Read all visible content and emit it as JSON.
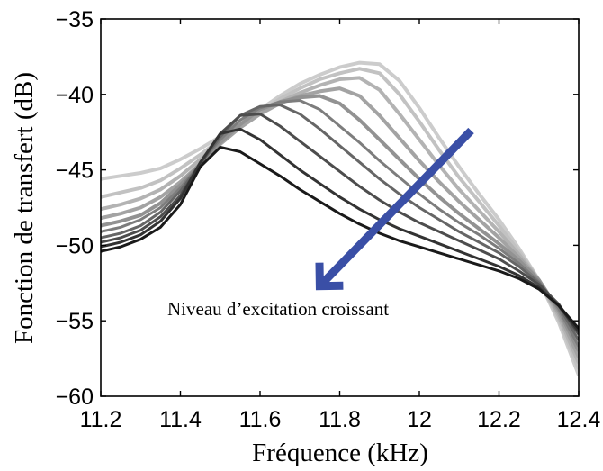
{
  "chart_data": {
    "type": "line",
    "title": "",
    "xlabel": "Fréquence (kHz)",
    "ylabel": "Fonction de transfert (dB)",
    "xlim": [
      11.2,
      12.4
    ],
    "ylim": [
      -60,
      -35
    ],
    "xticks": [
      11.2,
      11.4,
      11.6,
      11.8,
      12,
      12.2,
      12.4
    ],
    "xtick_labels": [
      "11.2",
      "11.4",
      "11.6",
      "11.8",
      "12",
      "12.2",
      "12.4"
    ],
    "yticks": [
      -35,
      -40,
      -45,
      -50,
      -55,
      -60
    ],
    "ytick_labels": [
      "−35",
      "−40",
      "−45",
      "−50",
      "−55",
      "−60"
    ],
    "grid": false,
    "legend": "none",
    "annotation": {
      "text": "Niveau d’excitation croissant",
      "arrow_from": [
        12.13,
        -42.4
      ],
      "arrow_to": [
        11.75,
        -52.7
      ],
      "arrow_color": "#3a4fa6"
    },
    "series_colors": [
      "#1a1a1a",
      "#333333",
      "#4d4d4d",
      "#666666",
      "#7d7d7d",
      "#929292",
      "#a3a3a3",
      "#b3b3b3",
      "#c2c2c2",
      "#cccccc"
    ],
    "series": [
      {
        "peak_x": 11.5,
        "values": [
          [
            11.2,
            -50.4
          ],
          [
            11.25,
            -50.1
          ],
          [
            11.3,
            -49.6
          ],
          [
            11.35,
            -48.8
          ],
          [
            11.4,
            -47.3
          ],
          [
            11.45,
            -44.8
          ],
          [
            11.5,
            -43.5
          ],
          [
            11.55,
            -43.8
          ],
          [
            11.6,
            -44.6
          ],
          [
            11.65,
            -45.4
          ],
          [
            11.7,
            -46.3
          ],
          [
            11.75,
            -47.1
          ],
          [
            11.8,
            -47.9
          ],
          [
            11.85,
            -48.6
          ],
          [
            11.9,
            -49.2
          ],
          [
            11.95,
            -49.7
          ],
          [
            12.0,
            -50.1
          ],
          [
            12.05,
            -50.5
          ],
          [
            12.1,
            -50.9
          ],
          [
            12.15,
            -51.3
          ],
          [
            12.2,
            -51.7
          ],
          [
            12.25,
            -52.2
          ],
          [
            12.3,
            -52.9
          ],
          [
            12.35,
            -54.0
          ],
          [
            12.4,
            -55.5
          ]
        ]
      },
      {
        "peak_x": 11.55,
        "values": [
          [
            11.2,
            -50.1
          ],
          [
            11.25,
            -49.8
          ],
          [
            11.3,
            -49.3
          ],
          [
            11.35,
            -48.4
          ],
          [
            11.4,
            -46.9
          ],
          [
            11.45,
            -44.5
          ],
          [
            11.5,
            -42.6
          ],
          [
            11.55,
            -42.3
          ],
          [
            11.6,
            -43.0
          ],
          [
            11.65,
            -44.0
          ],
          [
            11.7,
            -45.0
          ],
          [
            11.75,
            -45.9
          ],
          [
            11.8,
            -46.8
          ],
          [
            11.85,
            -47.6
          ],
          [
            11.9,
            -48.3
          ],
          [
            11.95,
            -48.9
          ],
          [
            12.0,
            -49.4
          ],
          [
            12.05,
            -49.9
          ],
          [
            12.1,
            -50.4
          ],
          [
            12.15,
            -50.9
          ],
          [
            12.2,
            -51.4
          ],
          [
            12.25,
            -52.0
          ],
          [
            12.3,
            -52.8
          ],
          [
            12.35,
            -54.0
          ],
          [
            12.4,
            -55.7
          ]
        ]
      },
      {
        "peak_x": 11.6,
        "values": [
          [
            11.2,
            -49.8
          ],
          [
            11.25,
            -49.5
          ],
          [
            11.3,
            -49.0
          ],
          [
            11.35,
            -48.1
          ],
          [
            11.4,
            -46.7
          ],
          [
            11.45,
            -44.6
          ],
          [
            11.5,
            -42.6
          ],
          [
            11.55,
            -41.4
          ],
          [
            11.6,
            -41.3
          ],
          [
            11.65,
            -42.1
          ],
          [
            11.7,
            -43.1
          ],
          [
            11.75,
            -44.1
          ],
          [
            11.8,
            -45.1
          ],
          [
            11.85,
            -46.1
          ],
          [
            11.9,
            -47.0
          ],
          [
            11.95,
            -47.8
          ],
          [
            12.0,
            -48.5
          ],
          [
            12.05,
            -49.1
          ],
          [
            12.1,
            -49.7
          ],
          [
            12.15,
            -50.3
          ],
          [
            12.2,
            -50.9
          ],
          [
            12.25,
            -51.7
          ],
          [
            12.3,
            -52.6
          ],
          [
            12.35,
            -53.9
          ],
          [
            12.4,
            -55.9
          ]
        ]
      },
      {
        "peak_x": 11.65,
        "values": [
          [
            11.2,
            -49.5
          ],
          [
            11.25,
            -49.2
          ],
          [
            11.3,
            -48.7
          ],
          [
            11.35,
            -47.8
          ],
          [
            11.4,
            -46.4
          ],
          [
            11.45,
            -44.6
          ],
          [
            11.5,
            -42.8
          ],
          [
            11.55,
            -41.4
          ],
          [
            11.6,
            -40.8
          ],
          [
            11.65,
            -40.7
          ],
          [
            11.7,
            -41.3
          ],
          [
            11.75,
            -42.3
          ],
          [
            11.8,
            -43.4
          ],
          [
            11.85,
            -44.5
          ],
          [
            11.9,
            -45.6
          ],
          [
            11.95,
            -46.6
          ],
          [
            12.0,
            -47.5
          ],
          [
            12.05,
            -48.3
          ],
          [
            12.1,
            -49.1
          ],
          [
            12.15,
            -49.8
          ],
          [
            12.2,
            -50.5
          ],
          [
            12.25,
            -51.4
          ],
          [
            12.3,
            -52.5
          ],
          [
            12.35,
            -54.0
          ],
          [
            12.4,
            -56.3
          ]
        ]
      },
      {
        "peak_x": 11.7,
        "values": [
          [
            11.2,
            -49.1
          ],
          [
            11.25,
            -48.8
          ],
          [
            11.3,
            -48.3
          ],
          [
            11.35,
            -47.5
          ],
          [
            11.4,
            -46.2
          ],
          [
            11.45,
            -44.6
          ],
          [
            11.5,
            -43.0
          ],
          [
            11.55,
            -41.7
          ],
          [
            11.6,
            -40.9
          ],
          [
            11.65,
            -40.5
          ],
          [
            11.7,
            -40.4
          ],
          [
            11.75,
            -41.0
          ],
          [
            11.8,
            -42.1
          ],
          [
            11.85,
            -43.2
          ],
          [
            11.9,
            -44.4
          ],
          [
            11.95,
            -45.5
          ],
          [
            12.0,
            -46.6
          ],
          [
            12.05,
            -47.6
          ],
          [
            12.1,
            -48.5
          ],
          [
            12.15,
            -49.3
          ],
          [
            12.2,
            -50.2
          ],
          [
            12.25,
            -51.2
          ],
          [
            12.3,
            -52.4
          ],
          [
            12.35,
            -54.2
          ],
          [
            12.4,
            -56.7
          ]
        ]
      },
      {
        "peak_x": 11.75,
        "values": [
          [
            11.2,
            -48.7
          ],
          [
            11.25,
            -48.4
          ],
          [
            11.3,
            -48.0
          ],
          [
            11.35,
            -47.2
          ],
          [
            11.4,
            -46.0
          ],
          [
            11.45,
            -44.6
          ],
          [
            11.5,
            -43.2
          ],
          [
            11.55,
            -42.0
          ],
          [
            11.6,
            -41.0
          ],
          [
            11.65,
            -40.5
          ],
          [
            11.7,
            -40.2
          ],
          [
            11.75,
            -40.1
          ],
          [
            11.8,
            -40.6
          ],
          [
            11.85,
            -41.7
          ],
          [
            11.9,
            -43.0
          ],
          [
            11.95,
            -44.3
          ],
          [
            12.0,
            -45.6
          ],
          [
            12.05,
            -46.8
          ],
          [
            12.1,
            -47.9
          ],
          [
            12.15,
            -48.9
          ],
          [
            12.2,
            -49.9
          ],
          [
            12.25,
            -51.0
          ],
          [
            12.3,
            -52.3
          ],
          [
            12.35,
            -54.3
          ],
          [
            12.4,
            -57.0
          ]
        ]
      },
      {
        "peak_x": 11.8,
        "values": [
          [
            11.2,
            -48.2
          ],
          [
            11.25,
            -47.9
          ],
          [
            11.3,
            -47.5
          ],
          [
            11.35,
            -46.8
          ],
          [
            11.4,
            -45.8
          ],
          [
            11.45,
            -44.6
          ],
          [
            11.5,
            -43.3
          ],
          [
            11.55,
            -42.2
          ],
          [
            11.6,
            -41.3
          ],
          [
            11.65,
            -40.6
          ],
          [
            11.7,
            -40.1
          ],
          [
            11.75,
            -39.8
          ],
          [
            11.8,
            -39.6
          ],
          [
            11.85,
            -40.1
          ],
          [
            11.9,
            -41.4
          ],
          [
            11.95,
            -42.9
          ],
          [
            12.0,
            -44.4
          ],
          [
            12.05,
            -45.8
          ],
          [
            12.1,
            -47.1
          ],
          [
            12.15,
            -48.3
          ],
          [
            12.2,
            -49.5
          ],
          [
            12.25,
            -50.8
          ],
          [
            12.3,
            -52.3
          ],
          [
            12.35,
            -54.5
          ],
          [
            12.4,
            -57.4
          ]
        ]
      },
      {
        "peak_x": 11.85,
        "values": [
          [
            11.2,
            -47.6
          ],
          [
            11.25,
            -47.3
          ],
          [
            11.3,
            -46.9
          ],
          [
            11.35,
            -46.3
          ],
          [
            11.4,
            -45.4
          ],
          [
            11.45,
            -44.3
          ],
          [
            11.5,
            -43.2
          ],
          [
            11.55,
            -42.2
          ],
          [
            11.6,
            -41.3
          ],
          [
            11.65,
            -40.5
          ],
          [
            11.7,
            -39.9
          ],
          [
            11.75,
            -39.4
          ],
          [
            11.8,
            -39.0
          ],
          [
            11.85,
            -38.9
          ],
          [
            11.9,
            -39.7
          ],
          [
            11.95,
            -41.3
          ],
          [
            12.0,
            -43.0
          ],
          [
            12.05,
            -44.7
          ],
          [
            12.1,
            -46.3
          ],
          [
            12.15,
            -47.7
          ],
          [
            12.2,
            -49.1
          ],
          [
            12.25,
            -50.6
          ],
          [
            12.3,
            -52.3
          ],
          [
            12.35,
            -54.7
          ],
          [
            12.4,
            -57.8
          ]
        ]
      },
      {
        "peak_x": 11.88,
        "values": [
          [
            11.2,
            -46.8
          ],
          [
            11.25,
            -46.5
          ],
          [
            11.3,
            -46.2
          ],
          [
            11.35,
            -45.7
          ],
          [
            11.4,
            -44.9
          ],
          [
            11.45,
            -44.0
          ],
          [
            11.5,
            -43.0
          ],
          [
            11.55,
            -42.1
          ],
          [
            11.6,
            -41.2
          ],
          [
            11.65,
            -40.3
          ],
          [
            11.7,
            -39.6
          ],
          [
            11.75,
            -39.0
          ],
          [
            11.8,
            -38.6
          ],
          [
            11.85,
            -38.3
          ],
          [
            11.9,
            -38.6
          ],
          [
            11.95,
            -40.0
          ],
          [
            12.0,
            -41.8
          ],
          [
            12.05,
            -43.7
          ],
          [
            12.1,
            -45.5
          ],
          [
            12.15,
            -47.1
          ],
          [
            12.2,
            -48.7
          ],
          [
            12.25,
            -50.4
          ],
          [
            12.3,
            -52.3
          ],
          [
            12.35,
            -54.9
          ],
          [
            12.4,
            -58.2
          ]
        ]
      },
      {
        "peak_x": 11.9,
        "values": [
          [
            11.2,
            -45.6
          ],
          [
            11.25,
            -45.4
          ],
          [
            11.3,
            -45.2
          ],
          [
            11.35,
            -44.9
          ],
          [
            11.4,
            -44.3
          ],
          [
            11.45,
            -43.6
          ],
          [
            11.5,
            -42.8
          ],
          [
            11.55,
            -41.9
          ],
          [
            11.6,
            -41.0
          ],
          [
            11.65,
            -40.1
          ],
          [
            11.7,
            -39.3
          ],
          [
            11.75,
            -38.7
          ],
          [
            11.8,
            -38.2
          ],
          [
            11.85,
            -37.9
          ],
          [
            11.9,
            -38.0
          ],
          [
            11.95,
            -39.1
          ],
          [
            12.0,
            -40.9
          ],
          [
            12.05,
            -42.9
          ],
          [
            12.1,
            -44.8
          ],
          [
            12.15,
            -46.6
          ],
          [
            12.2,
            -48.3
          ],
          [
            12.25,
            -50.2
          ],
          [
            12.3,
            -52.3
          ],
          [
            12.35,
            -55.1
          ],
          [
            12.4,
            -58.6
          ]
        ]
      }
    ]
  }
}
